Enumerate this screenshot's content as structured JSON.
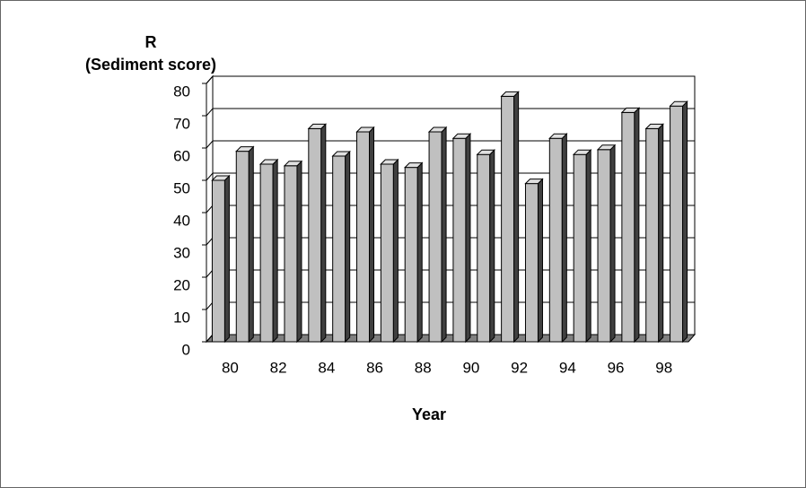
{
  "chart_data": {
    "type": "bar3d",
    "y_label": "R",
    "y_label_sub": "(Sediment score)",
    "x_label": "Year",
    "categories": [
      "80",
      null,
      "82",
      null,
      "84",
      null,
      "86",
      null,
      "88",
      null,
      "90",
      null,
      "92",
      null,
      "94",
      null,
      "96",
      null,
      "98",
      null
    ],
    "values": [
      50,
      59,
      55,
      54.5,
      66,
      57.5,
      65,
      55,
      54,
      65,
      63,
      58,
      76,
      49,
      63,
      58,
      59.5,
      71,
      66,
      73
    ],
    "color": "#c0c0c0",
    "ylim": [
      0,
      80
    ],
    "yticks": [
      0,
      10,
      20,
      30,
      40,
      50,
      60,
      70,
      80
    ],
    "grid": true
  }
}
